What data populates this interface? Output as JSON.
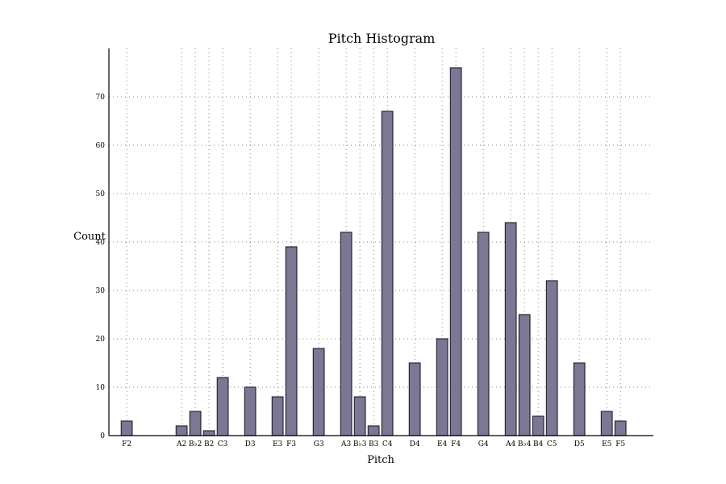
{
  "chart_data": {
    "type": "bar",
    "title": "Pitch Histogram",
    "xlabel": "Pitch",
    "ylabel": "Count",
    "ylim": [
      0,
      80
    ],
    "yticks": [
      0,
      10,
      20,
      30,
      40,
      50,
      60,
      70
    ],
    "grid": true,
    "series": [
      {
        "color": "#7b7794",
        "points": [
          {
            "label": "F2",
            "x": 41,
            "value": 3
          },
          {
            "label": "A2",
            "x": 45,
            "value": 2
          },
          {
            "label": "B♭2",
            "x": 46,
            "value": 5
          },
          {
            "label": "B2",
            "x": 47,
            "value": 1
          },
          {
            "label": "C3",
            "x": 48,
            "value": 12
          },
          {
            "label": "D3",
            "x": 50,
            "value": 10
          },
          {
            "label": "E3",
            "x": 52,
            "value": 8
          },
          {
            "label": "F3",
            "x": 53,
            "value": 39
          },
          {
            "label": "G3",
            "x": 55,
            "value": 18
          },
          {
            "label": "A3",
            "x": 57,
            "value": 42
          },
          {
            "label": "B♭3",
            "x": 58,
            "value": 8
          },
          {
            "label": "B3",
            "x": 59,
            "value": 2
          },
          {
            "label": "C4",
            "x": 60,
            "value": 67
          },
          {
            "label": "D4",
            "x": 62,
            "value": 15
          },
          {
            "label": "E4",
            "x": 64,
            "value": 20
          },
          {
            "label": "F4",
            "x": 65,
            "value": 76
          },
          {
            "label": "G4",
            "x": 67,
            "value": 42
          },
          {
            "label": "A4",
            "x": 69,
            "value": 44
          },
          {
            "label": "B♭4",
            "x": 70,
            "value": 25
          },
          {
            "label": "B4",
            "x": 71,
            "value": 4
          },
          {
            "label": "C5",
            "x": 72,
            "value": 32
          },
          {
            "label": "D5",
            "x": 74,
            "value": 15
          },
          {
            "label": "E5",
            "x": 76,
            "value": 5
          },
          {
            "label": "F5",
            "x": 77,
            "value": 3
          }
        ]
      }
    ]
  }
}
